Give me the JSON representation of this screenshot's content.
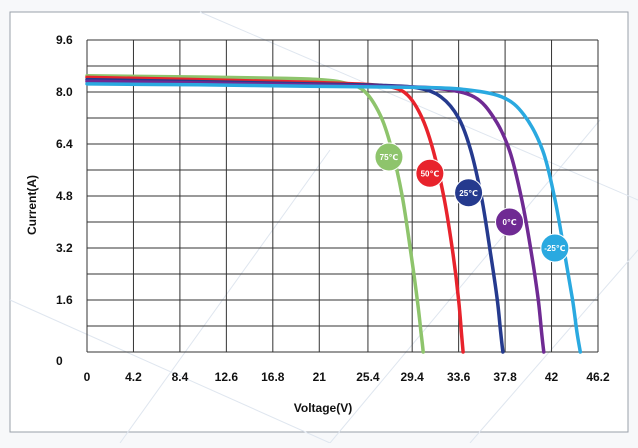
{
  "chart_data": {
    "type": "line",
    "title": "",
    "xlabel": "Voltage(V)",
    "ylabel": "Current(A)",
    "xlim": [
      0,
      46.2
    ],
    "ylim": [
      0,
      9.6
    ],
    "x_ticks": [
      0,
      4.2,
      8.4,
      12.6,
      16.8,
      21,
      25.4,
      29.4,
      33.6,
      37.8,
      42,
      46.2
    ],
    "x_tick_labels": [
      "0",
      "4.2",
      "8.4",
      "12.6",
      "16.8",
      "21",
      "25.4",
      "29.4",
      "33.6",
      "37.8",
      "42",
      "46.2"
    ],
    "y_ticks": [
      0,
      1.6,
      3.2,
      4.8,
      6.4,
      8.0,
      9.6
    ],
    "y_tick_labels": [
      "0",
      "1.6",
      "3.2",
      "4.8",
      "6.4",
      "8.0",
      "9.6"
    ],
    "grid": true,
    "series": [
      {
        "name": "75℃",
        "color": "#8ec46c",
        "x": [
          0,
          10,
          18,
          21,
          23,
          25,
          26.5,
          27.5,
          28.5,
          29.3,
          29.9,
          30.2,
          30.4
        ],
        "y": [
          8.5,
          8.46,
          8.42,
          8.38,
          8.3,
          8.05,
          7.3,
          6.3,
          4.8,
          3.0,
          1.5,
          0.6,
          0
        ]
      },
      {
        "name": "50℃",
        "color": "#e8232c",
        "x": [
          0,
          10,
          20,
          25,
          27.5,
          29,
          30.3,
          31.3,
          32.3,
          33.1,
          33.6,
          33.85,
          34.0
        ],
        "y": [
          8.45,
          8.38,
          8.3,
          8.24,
          8.15,
          7.9,
          7.2,
          6.2,
          4.7,
          3.0,
          1.6,
          0.6,
          0
        ]
      },
      {
        "name": "25℃",
        "color": "#253a8e",
        "x": [
          0,
          10,
          20,
          27,
          30,
          32,
          33.6,
          34.7,
          35.7,
          36.5,
          37.1,
          37.4,
          37.6
        ],
        "y": [
          8.38,
          8.32,
          8.25,
          8.2,
          8.12,
          7.85,
          7.2,
          6.2,
          4.7,
          3.0,
          1.6,
          0.6,
          0
        ]
      },
      {
        "name": "0℃",
        "color": "#6f2a93",
        "x": [
          0,
          10,
          20,
          28,
          32,
          35,
          36.8,
          38.2,
          39.3,
          40.2,
          40.8,
          41.1,
          41.3
        ],
        "y": [
          8.33,
          8.28,
          8.22,
          8.17,
          8.1,
          7.85,
          7.2,
          6.2,
          4.7,
          3.0,
          1.6,
          0.6,
          0
        ]
      },
      {
        "name": "-25℃",
        "color": "#2aa9e0",
        "x": [
          0,
          10,
          20,
          30,
          34,
          37.5,
          39.5,
          41.2,
          42.3,
          43.2,
          43.9,
          44.3,
          44.6
        ],
        "y": [
          8.25,
          8.22,
          8.18,
          8.14,
          8.08,
          7.85,
          7.3,
          6.2,
          4.7,
          3.0,
          1.6,
          0.6,
          0
        ]
      }
    ],
    "annotations": [
      {
        "text": "75℃",
        "x": 27.3,
        "y": 6.0,
        "color": "#8ec46c"
      },
      {
        "text": "50℃",
        "x": 31.0,
        "y": 5.5,
        "color": "#e8232c"
      },
      {
        "text": "25℃",
        "x": 34.5,
        "y": 4.9,
        "color": "#253a8e"
      },
      {
        "text": "0℃",
        "x": 38.2,
        "y": 4.0,
        "color": "#6f2a93"
      },
      {
        "text": "-25℃",
        "x": 42.3,
        "y": 3.2,
        "color": "#2aa9e0"
      }
    ]
  }
}
